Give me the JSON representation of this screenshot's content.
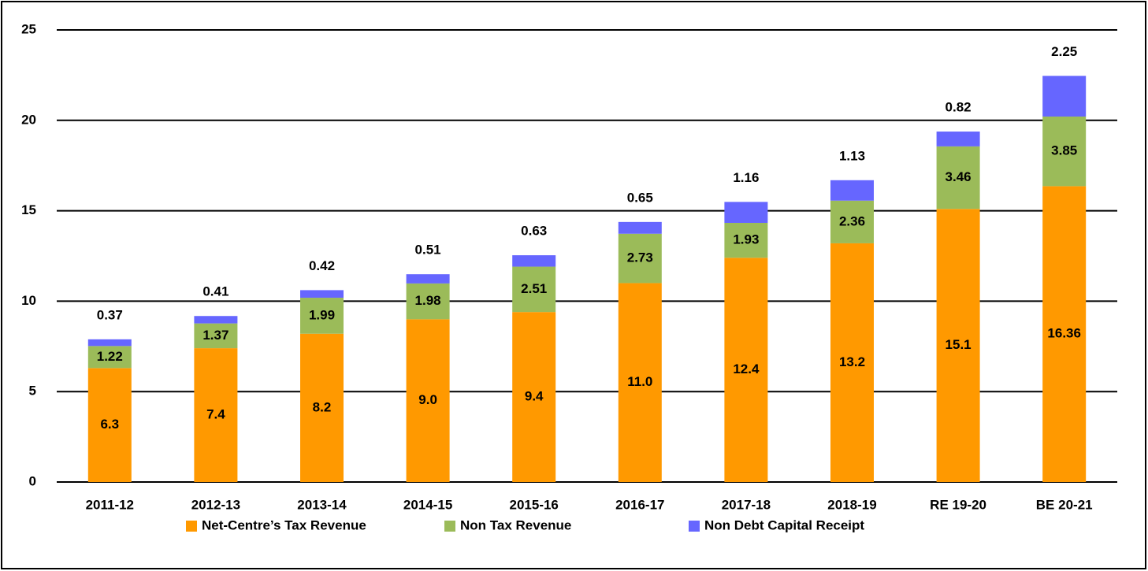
{
  "chart_data": {
    "type": "stacked_bar",
    "categories": [
      "2011-12",
      "2012-13",
      "2013-14",
      "2014-15",
      "2015-16",
      "2016-17",
      "2017-18",
      "2018-19",
      "RE 19-20",
      "BE 20-21"
    ],
    "series": [
      {
        "name": "Net-Centre’s Tax Revenue",
        "color": "#FF9900",
        "values": [
          6.3,
          7.4,
          8.2,
          9.0,
          9.4,
          11.0,
          12.4,
          13.2,
          15.1,
          16.36
        ],
        "value_labels": [
          "6.3",
          "7.4",
          "8.2",
          "9.0",
          "9.4",
          "11.0",
          "12.4",
          "13.2",
          "15.1",
          "16.36"
        ]
      },
      {
        "name": "Non Tax Revenue",
        "color": "#9BBB59",
        "values": [
          1.22,
          1.37,
          1.99,
          1.98,
          2.51,
          2.73,
          1.93,
          2.36,
          3.46,
          3.85
        ]
      },
      {
        "name": "Non Debt Capital Receipt",
        "color": "#6666FF",
        "values": [
          0.37,
          0.41,
          0.42,
          0.51,
          0.63,
          0.65,
          1.16,
          1.13,
          0.82,
          2.25
        ]
      }
    ],
    "ylim": [
      0,
      25
    ],
    "yticks": [
      0,
      5,
      10,
      15,
      20,
      25
    ],
    "grid": true,
    "legend": "bottom"
  }
}
